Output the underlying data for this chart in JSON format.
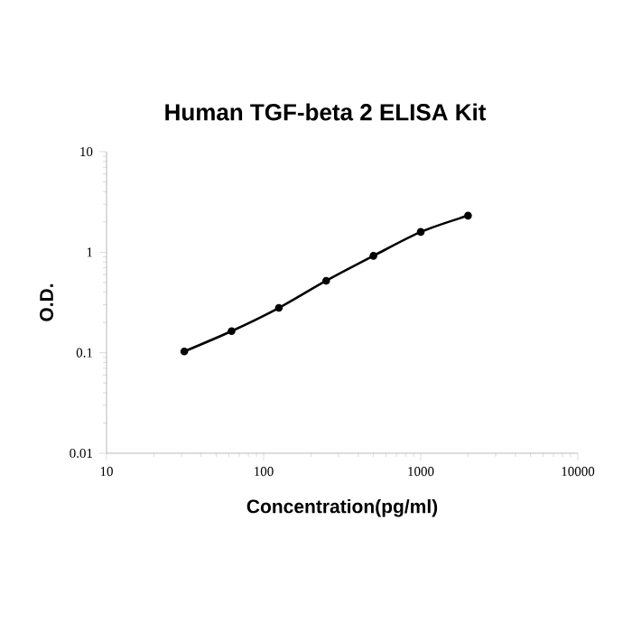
{
  "chart_data": {
    "type": "line",
    "title": "Human TGF-beta 2 ELISA Kit",
    "xlabel": "Concentration(pg/ml)",
    "ylabel": "O.D.",
    "x": [
      31.25,
      62.5,
      125,
      250,
      500,
      1000,
      2000
    ],
    "values": [
      0.103,
      0.164,
      0.279,
      0.52,
      0.92,
      1.59,
      2.31
    ],
    "color": "#000000",
    "marker": "circle",
    "line_style": "solid",
    "log": "xy",
    "xlim": [
      10,
      10000
    ],
    "ylim": [
      0.01,
      10
    ],
    "xticks": [
      10,
      100,
      1000,
      10000
    ],
    "yticks": [
      0.01,
      0.1,
      1,
      10
    ]
  }
}
